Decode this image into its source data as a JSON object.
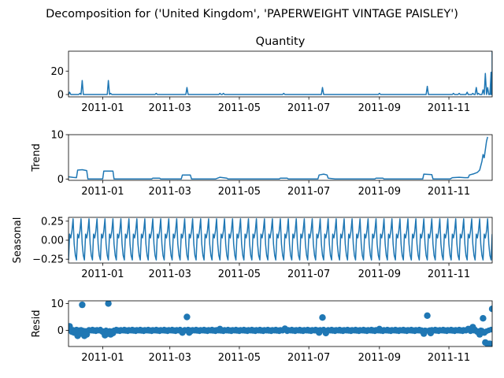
{
  "figure": {
    "suptitle": "Decomposition for ('United Kingdom', 'PAPERWEIGHT VINTAGE PAISLEY')"
  },
  "colors": {
    "series": "#1f77b4",
    "axes": "#000000",
    "background": "#ffffff"
  },
  "chart_data": [
    {
      "type": "line",
      "title": "Quantity",
      "ylabel": "",
      "xlim": [
        "2010-12-02",
        "2011-12-09"
      ],
      "ylim": [
        -2,
        37
      ],
      "x_ticks": [
        "2011-01",
        "2011-03",
        "2011-05",
        "2011-07",
        "2011-09",
        "2011-11"
      ],
      "y_ticks": [
        0,
        20
      ],
      "grid": false,
      "series": [
        {
          "baseline": 0,
          "spikes": [
            {
              "x": "2010-12-03",
              "y": 2
            },
            {
              "x": "2010-12-12",
              "y": 1
            },
            {
              "x": "2010-12-14",
              "y": 12
            },
            {
              "x": "2011-01-06",
              "y": 12
            },
            {
              "x": "2011-01-08",
              "y": 1
            },
            {
              "x": "2011-02-17",
              "y": 1
            },
            {
              "x": "2011-03-16",
              "y": 6
            },
            {
              "x": "2011-04-14",
              "y": 1
            },
            {
              "x": "2011-04-17",
              "y": 1
            },
            {
              "x": "2011-06-09",
              "y": 1
            },
            {
              "x": "2011-07-13",
              "y": 6
            },
            {
              "x": "2011-09-01",
              "y": 1
            },
            {
              "x": "2011-10-13",
              "y": 7
            },
            {
              "x": "2011-11-05",
              "y": 1
            },
            {
              "x": "2011-11-10",
              "y": 1
            },
            {
              "x": "2011-11-17",
              "y": 2
            },
            {
              "x": "2011-11-22",
              "y": 1
            },
            {
              "x": "2011-11-25",
              "y": 6
            },
            {
              "x": "2011-11-27",
              "y": 1
            },
            {
              "x": "2011-12-01",
              "y": 4
            },
            {
              "x": "2011-12-03",
              "y": 18
            },
            {
              "x": "2011-12-05",
              "y": 6
            },
            {
              "x": "2011-12-08",
              "y": 19
            },
            {
              "x": "2011-12-09",
              "y": 37
            }
          ]
        }
      ]
    },
    {
      "type": "line",
      "title": "",
      "ylabel": "Trend",
      "xlim": [
        "2010-12-02",
        "2011-12-09"
      ],
      "ylim": [
        -0.3,
        10
      ],
      "x_ticks": [
        "2011-01",
        "2011-03",
        "2011-05",
        "2011-07",
        "2011-09",
        "2011-11"
      ],
      "y_ticks": [
        0,
        10
      ],
      "grid": false,
      "series": [
        {
          "points": [
            [
              "2010-12-02",
              0.5
            ],
            [
              "2010-12-06",
              0.35
            ],
            [
              "2010-12-09",
              0.3
            ],
            [
              "2010-12-10",
              2.0
            ],
            [
              "2010-12-14",
              2.1
            ],
            [
              "2010-12-18",
              1.9
            ],
            [
              "2010-12-19",
              0
            ],
            [
              "2011-01-01",
              0
            ],
            [
              "2011-01-02",
              1.8
            ],
            [
              "2011-01-10",
              1.8
            ],
            [
              "2011-01-11",
              0
            ],
            [
              "2011-02-13",
              0
            ],
            [
              "2011-02-14",
              0.2
            ],
            [
              "2011-02-20",
              0.2
            ],
            [
              "2011-02-21",
              0
            ],
            [
              "2011-03-11",
              0
            ],
            [
              "2011-03-12",
              0.9
            ],
            [
              "2011-03-19",
              0.9
            ],
            [
              "2011-03-20",
              0
            ],
            [
              "2011-04-10",
              0
            ],
            [
              "2011-04-14",
              0.4
            ],
            [
              "2011-04-20",
              0.2
            ],
            [
              "2011-04-21",
              0
            ],
            [
              "2011-06-05",
              0
            ],
            [
              "2011-06-06",
              0.2
            ],
            [
              "2011-06-12",
              0.2
            ],
            [
              "2011-06-13",
              0
            ],
            [
              "2011-07-09",
              0
            ],
            [
              "2011-07-10",
              0.9
            ],
            [
              "2011-07-14",
              1.1
            ],
            [
              "2011-07-17",
              0.9
            ],
            [
              "2011-07-18",
              0.2
            ],
            [
              "2011-07-24",
              0
            ],
            [
              "2011-08-28",
              0
            ],
            [
              "2011-08-29",
              0.2
            ],
            [
              "2011-09-04",
              0.2
            ],
            [
              "2011-09-05",
              0
            ],
            [
              "2011-10-09",
              0
            ],
            [
              "2011-10-10",
              1.1
            ],
            [
              "2011-10-17",
              1.0
            ],
            [
              "2011-10-18",
              0
            ],
            [
              "2011-11-02",
              0
            ],
            [
              "2011-11-04",
              0.3
            ],
            [
              "2011-11-10",
              0.4
            ],
            [
              "2011-11-15",
              0.3
            ],
            [
              "2011-11-18",
              0.3
            ],
            [
              "2011-11-19",
              0.9
            ],
            [
              "2011-11-23",
              1.2
            ],
            [
              "2011-11-26",
              1.5
            ],
            [
              "2011-11-28",
              2.0
            ],
            [
              "2011-11-30",
              4.0
            ],
            [
              "2011-12-01",
              5.5
            ],
            [
              "2011-12-02",
              4.8
            ],
            [
              "2011-12-04",
              8.5
            ],
            [
              "2011-12-05",
              9.5
            ]
          ]
        }
      ]
    },
    {
      "type": "line",
      "title": "",
      "ylabel": "Seasonal",
      "xlim": [
        "2010-12-02",
        "2011-12-09"
      ],
      "ylim": [
        -0.3,
        0.3
      ],
      "x_ticks": [
        "2011-01",
        "2011-03",
        "2011-05",
        "2011-07",
        "2011-09",
        "2011-11"
      ],
      "y_ticks": [
        -0.25,
        0.0,
        0.25
      ],
      "y_tick_labels": [
        "−0.25",
        "0.00",
        "0.25"
      ],
      "grid": false,
      "series": [
        {
          "start": "2010-12-02",
          "end": "2011-12-09",
          "period_days": 7,
          "weekly_pattern": [
            -0.26,
            0.08,
            0.03,
            0.12,
            0.28,
            -0.05,
            -0.2
          ]
        }
      ]
    },
    {
      "type": "scatter",
      "title": "",
      "ylabel": "Resid",
      "xlim": [
        "2010-12-02",
        "2011-12-09"
      ],
      "ylim": [
        -6,
        11
      ],
      "x_ticks": [
        "2011-01",
        "2011-03",
        "2011-05",
        "2011-07",
        "2011-09",
        "2011-11"
      ],
      "y_ticks": [
        0,
        10
      ],
      "grid": false,
      "series": [
        {
          "baseline_residual": 0,
          "points": [
            [
              "2010-12-03",
              1.5
            ],
            [
              "2010-12-05",
              -0.5
            ],
            [
              "2010-12-07",
              -0.8
            ],
            [
              "2010-12-10",
              -2.0
            ],
            [
              "2010-12-12",
              -1.2
            ],
            [
              "2010-12-14",
              9.5
            ],
            [
              "2010-12-16",
              -2.0
            ],
            [
              "2010-12-18",
              -1.5
            ],
            [
              "2011-01-01",
              -0.5
            ],
            [
              "2011-01-03",
              -1.8
            ],
            [
              "2011-01-05",
              -1.2
            ],
            [
              "2011-01-06",
              10.0
            ],
            [
              "2011-01-08",
              -1.5
            ],
            [
              "2011-01-10",
              -1.0
            ],
            [
              "2011-03-12",
              -0.8
            ],
            [
              "2011-03-16",
              5.0
            ],
            [
              "2011-03-18",
              -0.8
            ],
            [
              "2011-04-14",
              0.5
            ],
            [
              "2011-06-10",
              0.6
            ],
            [
              "2011-07-10",
              -0.8
            ],
            [
              "2011-07-13",
              4.8
            ],
            [
              "2011-07-16",
              -1.0
            ],
            [
              "2011-09-01",
              0.5
            ],
            [
              "2011-10-10",
              -1.2
            ],
            [
              "2011-10-13",
              5.5
            ],
            [
              "2011-10-16",
              -1.0
            ],
            [
              "2011-11-18",
              0.5
            ],
            [
              "2011-11-22",
              1.2
            ],
            [
              "2011-11-26",
              -0.5
            ],
            [
              "2011-11-28",
              -1.5
            ],
            [
              "2011-12-01",
              4.5
            ],
            [
              "2011-12-02",
              -0.8
            ],
            [
              "2011-12-03",
              -4.5
            ],
            [
              "2011-12-05",
              -5.0
            ],
            [
              "2011-12-07",
              -5.0
            ],
            [
              "2011-12-09",
              8.0
            ]
          ]
        }
      ]
    }
  ]
}
